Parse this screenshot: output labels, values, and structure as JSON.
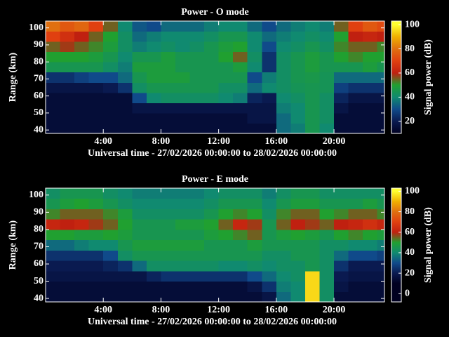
{
  "chart_data": [
    {
      "type": "heatmap",
      "title": "Power - O mode",
      "xlabel": "Universal time - 27/02/2026 00:00:00 to 28/02/2026 00:00:00",
      "ylabel": "Range (km)",
      "colorbar_label": "Signal power (dB)",
      "x_edges": [
        0,
        1,
        2,
        3,
        4,
        5,
        6,
        7,
        8,
        9,
        10,
        11,
        12,
        13,
        14,
        15,
        16,
        17,
        18,
        19,
        20,
        21,
        22,
        23,
        23.5
      ],
      "y_edges": [
        38,
        44,
        50,
        56,
        62,
        68,
        74,
        80,
        86,
        92,
        98,
        104
      ],
      "values": [
        [
          15,
          15,
          15,
          15,
          15,
          15,
          15,
          15,
          15,
          15,
          15,
          15,
          15,
          15,
          15,
          15,
          35,
          38,
          45,
          40,
          15,
          15,
          15,
          15
        ],
        [
          15,
          15,
          15,
          15,
          15,
          15,
          15,
          15,
          15,
          15,
          15,
          15,
          15,
          15,
          18,
          18,
          35,
          40,
          45,
          42,
          15,
          15,
          15,
          15
        ],
        [
          15,
          15,
          15,
          15,
          15,
          15,
          18,
          18,
          18,
          18,
          18,
          18,
          18,
          18,
          18,
          18,
          38,
          40,
          45,
          42,
          18,
          15,
          15,
          15
        ],
        [
          15,
          15,
          15,
          15,
          15,
          15,
          30,
          40,
          42,
          42,
          42,
          42,
          40,
          38,
          22,
          20,
          40,
          42,
          45,
          42,
          22,
          18,
          18,
          18
        ],
        [
          18,
          18,
          18,
          18,
          20,
          25,
          42,
          45,
          45,
          45,
          45,
          45,
          42,
          42,
          35,
          40,
          42,
          44,
          45,
          44,
          28,
          25,
          25,
          25
        ],
        [
          25,
          25,
          28,
          30,
          30,
          35,
          45,
          48,
          48,
          48,
          45,
          45,
          45,
          45,
          30,
          38,
          42,
          45,
          46,
          44,
          35,
          35,
          35,
          35
        ],
        [
          45,
          45,
          45,
          45,
          42,
          38,
          48,
          48,
          48,
          45,
          45,
          45,
          45,
          48,
          40,
          25,
          42,
          45,
          48,
          45,
          45,
          45,
          48,
          45
        ],
        [
          50,
          50,
          50,
          48,
          45,
          40,
          45,
          45,
          48,
          45,
          45,
          45,
          50,
          55,
          42,
          25,
          42,
          45,
          48,
          45,
          50,
          52,
          50,
          50
        ],
        [
          55,
          58,
          55,
          52,
          48,
          42,
          38,
          40,
          42,
          40,
          42,
          45,
          48,
          50,
          40,
          30,
          40,
          42,
          45,
          42,
          52,
          55,
          55,
          52
        ],
        [
          70,
          65,
          60,
          55,
          50,
          42,
          35,
          38,
          40,
          40,
          40,
          42,
          45,
          45,
          40,
          35,
          38,
          40,
          42,
          40,
          50,
          60,
          62,
          60
        ],
        [
          80,
          75,
          78,
          70,
          55,
          40,
          32,
          30,
          35,
          35,
          35,
          38,
          40,
          40,
          35,
          30,
          35,
          38,
          40,
          38,
          55,
          70,
          75,
          72
        ]
      ],
      "xlim": [
        0,
        23.5
      ],
      "ylim": [
        38,
        104
      ],
      "xticks": [
        {
          "value": 4,
          "label": "4:00"
        },
        {
          "value": 8,
          "label": "8:00"
        },
        {
          "value": 12,
          "label": "12:00"
        },
        {
          "value": 16,
          "label": "16:00"
        },
        {
          "value": 20,
          "label": "20:00"
        }
      ],
      "yticks": [
        40,
        50,
        60,
        70,
        80,
        90,
        100
      ],
      "clim": [
        10,
        103
      ],
      "cticks": [
        20,
        40,
        60,
        80,
        100
      ],
      "colorstops": [
        [
          10,
          "#000020"
        ],
        [
          20,
          "#0a1a50"
        ],
        [
          30,
          "#104a8a"
        ],
        [
          40,
          "#108a70"
        ],
        [
          50,
          "#20a030"
        ],
        [
          60,
          "#c02010"
        ],
        [
          70,
          "#e04010"
        ],
        [
          80,
          "#e07010"
        ],
        [
          90,
          "#f0b000"
        ],
        [
          100,
          "#ffff30"
        ]
      ]
    },
    {
      "type": "heatmap",
      "title": "Power - E mode",
      "xlabel": "Universal time - 27/02/2026 00:00:00 to 28/02/2026 00:00:00",
      "ylabel": "Range (km)",
      "colorbar_label": "Signal power (dB)",
      "x_edges": [
        0,
        1,
        2,
        3,
        4,
        5,
        6,
        7,
        8,
        9,
        10,
        11,
        12,
        13,
        14,
        15,
        16,
        17,
        18,
        19,
        20,
        21,
        22,
        23,
        23.5
      ],
      "y_edges": [
        38,
        44,
        50,
        56,
        62,
        68,
        74,
        80,
        86,
        92,
        98,
        104
      ],
      "values": [
        [
          15,
          15,
          15,
          15,
          15,
          15,
          15,
          15,
          15,
          15,
          15,
          15,
          15,
          15,
          15,
          18,
          35,
          40,
          95,
          42,
          15,
          15,
          15,
          15
        ],
        [
          15,
          15,
          15,
          15,
          15,
          15,
          15,
          15,
          15,
          15,
          15,
          15,
          15,
          15,
          18,
          25,
          38,
          40,
          95,
          42,
          18,
          15,
          15,
          15
        ],
        [
          18,
          18,
          18,
          18,
          18,
          18,
          18,
          22,
          25,
          25,
          25,
          25,
          25,
          25,
          30,
          35,
          40,
          42,
          95,
          42,
          20,
          18,
          18,
          18
        ],
        [
          20,
          20,
          20,
          20,
          22,
          25,
          35,
          42,
          42,
          42,
          42,
          42,
          40,
          40,
          42,
          40,
          42,
          42,
          45,
          42,
          25,
          20,
          20,
          20
        ],
        [
          25,
          25,
          25,
          25,
          30,
          42,
          45,
          45,
          45,
          45,
          45,
          45,
          45,
          45,
          45,
          42,
          42,
          45,
          45,
          42,
          35,
          30,
          30,
          28
        ],
        [
          35,
          35,
          38,
          40,
          40,
          45,
          48,
          48,
          48,
          48,
          48,
          45,
          45,
          45,
          48,
          45,
          45,
          45,
          45,
          42,
          42,
          40,
          40,
          38
        ],
        [
          50,
          50,
          48,
          48,
          50,
          48,
          45,
          45,
          45,
          45,
          45,
          48,
          50,
          52,
          55,
          45,
          48,
          50,
          48,
          45,
          50,
          52,
          50,
          48
        ],
        [
          62,
          60,
          62,
          58,
          55,
          50,
          45,
          45,
          45,
          48,
          48,
          50,
          55,
          62,
          58,
          45,
          55,
          60,
          58,
          55,
          60,
          62,
          65,
          62
        ],
        [
          52,
          55,
          55,
          55,
          52,
          48,
          42,
          42,
          42,
          42,
          42,
          45,
          50,
          52,
          50,
          42,
          52,
          55,
          55,
          50,
          52,
          55,
          55,
          52
        ],
        [
          45,
          48,
          50,
          48,
          45,
          42,
          40,
          40,
          40,
          40,
          40,
          42,
          45,
          45,
          45,
          40,
          45,
          48,
          48,
          45,
          45,
          45,
          48,
          45
        ],
        [
          42,
          45,
          45,
          45,
          42,
          40,
          38,
          38,
          38,
          38,
          38,
          40,
          42,
          42,
          42,
          38,
          42,
          45,
          45,
          42,
          42,
          42,
          42,
          42
        ]
      ],
      "xlim": [
        0,
        23.5
      ],
      "ylim": [
        38,
        104
      ],
      "xticks": [
        {
          "value": 4,
          "label": "4:00"
        },
        {
          "value": 8,
          "label": "8:00"
        },
        {
          "value": 12,
          "label": "12:00"
        },
        {
          "value": 16,
          "label": "16:00"
        },
        {
          "value": 20,
          "label": "20:00"
        }
      ],
      "yticks": [
        40,
        50,
        60,
        70,
        80,
        90,
        100
      ],
      "clim": [
        -8,
        103
      ],
      "cticks": [
        0,
        20,
        40,
        60,
        80,
        100
      ],
      "colorstops": [
        [
          10,
          "#000020"
        ],
        [
          20,
          "#0a1a50"
        ],
        [
          30,
          "#104a8a"
        ],
        [
          40,
          "#108a70"
        ],
        [
          50,
          "#20a030"
        ],
        [
          60,
          "#c02010"
        ],
        [
          70,
          "#e04010"
        ],
        [
          80,
          "#e07010"
        ],
        [
          90,
          "#f0b000"
        ],
        [
          100,
          "#ffff30"
        ]
      ]
    }
  ]
}
